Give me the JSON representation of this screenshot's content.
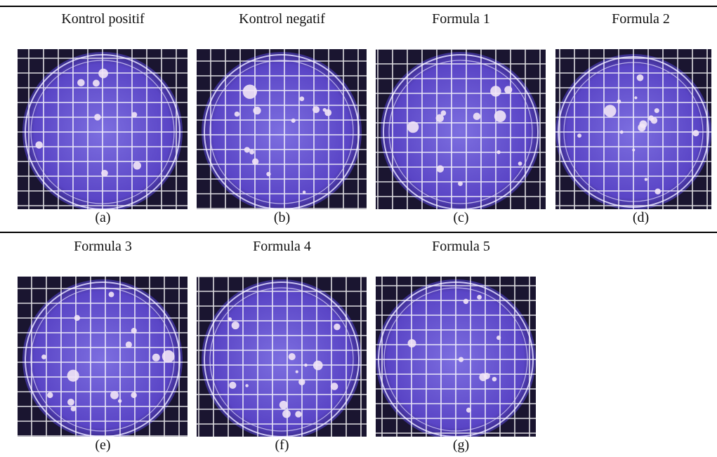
{
  "panels": [
    {
      "title": "Kontrol positif",
      "label": "(a)"
    },
    {
      "title": "Kontrol negatif",
      "label": "(b)"
    },
    {
      "title": "Formula 1",
      "label": "(c)"
    },
    {
      "title": "Formula 2",
      "label": "(d)"
    },
    {
      "title": "Formula 3",
      "label": "(e)"
    },
    {
      "title": "Formula 4",
      "label": "(f)"
    },
    {
      "title": "Formula 5",
      "label": "(g)"
    }
  ]
}
